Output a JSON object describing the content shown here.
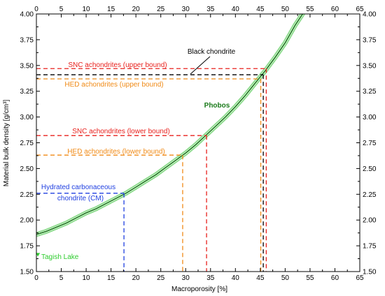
{
  "chart_data": {
    "type": "line",
    "xlabel": "Macroporosity [%]",
    "ylabel": "Material bulk density [g/cm³]",
    "xlim": [
      0,
      65
    ],
    "ylim": [
      1.5,
      4.0
    ],
    "xticks": [
      "0",
      "5",
      "10",
      "15",
      "20",
      "25",
      "30",
      "35",
      "40",
      "45",
      "50",
      "55",
      "60",
      "65"
    ],
    "yticks": [
      "1.50",
      "1.75",
      "2.00",
      "2.25",
      "2.50",
      "2.75",
      "3.00",
      "3.25",
      "3.50",
      "3.75",
      "4.00"
    ],
    "grid": false,
    "series": [
      {
        "name": "Phobos",
        "color": "#1a7a1a",
        "band_color": "#8fdc8f",
        "x": [
          0,
          2,
          4,
          6,
          8,
          10,
          12,
          14,
          16,
          18,
          20,
          22,
          24,
          26,
          28,
          30,
          32,
          34,
          36,
          38,
          40,
          42,
          44,
          46,
          48,
          50,
          52,
          53.5
        ],
        "y": [
          1.86,
          1.89,
          1.93,
          1.97,
          2.02,
          2.07,
          2.11,
          2.16,
          2.21,
          2.26,
          2.32,
          2.38,
          2.44,
          2.51,
          2.58,
          2.65,
          2.73,
          2.82,
          2.91,
          3.0,
          3.1,
          3.21,
          3.33,
          3.45,
          3.58,
          3.72,
          3.89,
          4.0
        ]
      }
    ],
    "reference_lines": [
      {
        "label": "SNC achondrites (upper bound)",
        "color": "#e8201c",
        "y": 3.47,
        "x": 46.2
      },
      {
        "label": "Black chondrite",
        "color": "#000000",
        "y": 3.41,
        "x": 45.6
      },
      {
        "label": "HED achondrites (upper bound)",
        "color": "#f08a16",
        "y": 3.37,
        "x": 45.1
      },
      {
        "label": "SNC achondrites (lower bound)",
        "color": "#e8201c",
        "y": 2.82,
        "x": 34.2
      },
      {
        "label": "HED achondrites (lower bound)",
        "color": "#f08a16",
        "y": 2.63,
        "x": 29.4
      },
      {
        "label": "Hydrated carbonaceous chondrite (CM)",
        "color": "#1f3fe0",
        "y": 2.26,
        "x": 17.6
      }
    ],
    "points": [
      {
        "label": "Tagish Lake",
        "color": "#2ecc2e",
        "x": 0.3,
        "y": 1.66
      }
    ]
  }
}
